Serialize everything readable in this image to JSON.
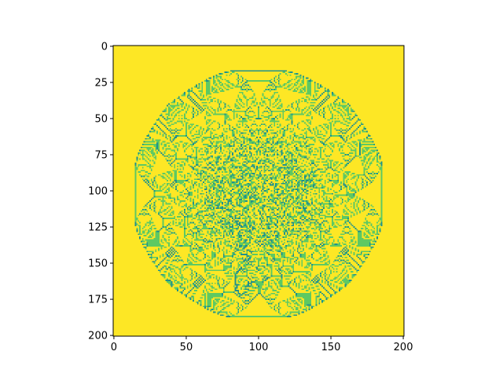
{
  "chart_data": {
    "type": "heatmap",
    "title": "",
    "xlabel": "",
    "ylabel": "",
    "grid_size": [
      201,
      201
    ],
    "xlim": [
      -0.5,
      200.5
    ],
    "ylim": [
      200.5,
      -0.5
    ],
    "y_axis_inverted": true,
    "xticks": [
      0,
      50,
      100,
      150,
      200
    ],
    "yticks": [
      0,
      25,
      50,
      75,
      100,
      125,
      150,
      175,
      200
    ],
    "xtick_labels": [
      "0",
      "50",
      "100",
      "150",
      "200"
    ],
    "ytick_labels": [
      "0",
      "25",
      "50",
      "75",
      "100",
      "125",
      "150",
      "175",
      "200"
    ],
    "colormap": "viridis",
    "palette": [
      "#3b528b",
      "#21918c",
      "#5ec962",
      "#fde725"
    ],
    "pattern": "symmetric cellular-automaton (sandpile-like) fractal pattern centered at (100, 100)",
    "center": [
      100,
      100
    ],
    "grid": false,
    "legend": "none"
  }
}
